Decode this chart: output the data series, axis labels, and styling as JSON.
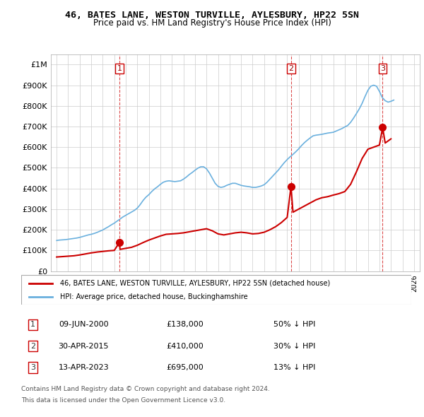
{
  "title": "46, BATES LANE, WESTON TURVILLE, AYLESBURY, HP22 5SN",
  "subtitle": "Price paid vs. HM Land Registry's House Price Index (HPI)",
  "legend_line1": "46, BATES LANE, WESTON TURVILLE, AYLESBURY, HP22 5SN (detached house)",
  "legend_line2": "HPI: Average price, detached house, Buckinghamshire",
  "footnote1": "Contains HM Land Registry data © Crown copyright and database right 2024.",
  "footnote2": "This data is licensed under the Open Government Licence v3.0.",
  "transactions": [
    {
      "num": 1,
      "date": "09-JUN-2000",
      "price": 138000,
      "hpi_diff": "50% ↓ HPI",
      "year": 2000.44
    },
    {
      "num": 2,
      "date": "30-APR-2015",
      "price": 410000,
      "hpi_diff": "30% ↓ HPI",
      "year": 2015.33
    },
    {
      "num": 3,
      "date": "13-APR-2023",
      "price": 695000,
      "hpi_diff": "13% ↓ HPI",
      "year": 2023.28
    }
  ],
  "hpi_color": "#6ab0de",
  "price_color": "#cc0000",
  "marker_color": "#cc0000",
  "vline_color": "#cc0000",
  "grid_color": "#cccccc",
  "bg_color": "#ffffff",
  "ylim": [
    0,
    1050000
  ],
  "xlim_start": 1994.5,
  "xlim_end": 2026.5,
  "yticks": [
    0,
    100000,
    200000,
    300000,
    400000,
    500000,
    600000,
    700000,
    800000,
    900000,
    1000000
  ],
  "ytick_labels": [
    "£0",
    "£100K",
    "£200K",
    "£300K",
    "£400K",
    "£500K",
    "£600K",
    "£700K",
    "£800K",
    "£900K",
    "£1M"
  ],
  "hpi_data_years": [
    1995,
    1995.25,
    1995.5,
    1995.75,
    1996,
    1996.25,
    1996.5,
    1996.75,
    1997,
    1997.25,
    1997.5,
    1997.75,
    1998,
    1998.25,
    1998.5,
    1998.75,
    1999,
    1999.25,
    1999.5,
    1999.75,
    2000,
    2000.25,
    2000.5,
    2000.75,
    2001,
    2001.25,
    2001.5,
    2001.75,
    2002,
    2002.25,
    2002.5,
    2002.75,
    2003,
    2003.25,
    2003.5,
    2003.75,
    2004,
    2004.25,
    2004.5,
    2004.75,
    2005,
    2005.25,
    2005.5,
    2005.75,
    2006,
    2006.25,
    2006.5,
    2006.75,
    2007,
    2007.25,
    2007.5,
    2007.75,
    2008,
    2008.25,
    2008.5,
    2008.75,
    2009,
    2009.25,
    2009.5,
    2009.75,
    2010,
    2010.25,
    2010.5,
    2010.75,
    2011,
    2011.25,
    2011.5,
    2011.75,
    2012,
    2012.25,
    2012.5,
    2012.75,
    2013,
    2013.25,
    2013.5,
    2013.75,
    2014,
    2014.25,
    2014.5,
    2014.75,
    2015,
    2015.25,
    2015.5,
    2015.75,
    2016,
    2016.25,
    2016.5,
    2016.75,
    2017,
    2017.25,
    2017.5,
    2017.75,
    2018,
    2018.25,
    2018.5,
    2018.75,
    2019,
    2019.25,
    2019.5,
    2019.75,
    2020,
    2020.25,
    2020.5,
    2020.75,
    2021,
    2021.25,
    2021.5,
    2021.75,
    2022,
    2022.25,
    2022.5,
    2022.75,
    2023,
    2023.25,
    2023.5,
    2023.75,
    2024,
    2024.25
  ],
  "hpi_data_values": [
    148000,
    150000,
    151000,
    152000,
    154000,
    156000,
    158000,
    160000,
    163000,
    167000,
    171000,
    175000,
    178000,
    182000,
    187000,
    193000,
    199000,
    207000,
    215000,
    224000,
    232000,
    242000,
    252000,
    262000,
    270000,
    278000,
    286000,
    294000,
    305000,
    322000,
    342000,
    358000,
    370000,
    385000,
    398000,
    408000,
    420000,
    430000,
    435000,
    437000,
    435000,
    433000,
    435000,
    437000,
    445000,
    455000,
    467000,
    477000,
    488000,
    498000,
    505000,
    505000,
    495000,
    475000,
    450000,
    425000,
    410000,
    405000,
    408000,
    415000,
    420000,
    425000,
    425000,
    420000,
    415000,
    412000,
    410000,
    408000,
    405000,
    405000,
    408000,
    412000,
    418000,
    430000,
    445000,
    460000,
    475000,
    490000,
    508000,
    525000,
    540000,
    553000,
    565000,
    578000,
    592000,
    608000,
    622000,
    634000,
    645000,
    655000,
    658000,
    660000,
    662000,
    665000,
    668000,
    670000,
    672000,
    678000,
    684000,
    690000,
    698000,
    705000,
    720000,
    740000,
    762000,
    785000,
    812000,
    845000,
    875000,
    895000,
    900000,
    895000,
    870000,
    840000,
    825000,
    818000,
    822000,
    828000
  ],
  "price_data_years": [
    1995,
    1995.5,
    1996,
    1996.5,
    1997,
    1997.5,
    1998,
    1998.5,
    1999,
    1999.5,
    2000,
    2000.44,
    2000.5,
    2001,
    2001.5,
    2002,
    2002.5,
    2003,
    2003.5,
    2004,
    2004.5,
    2005,
    2005.5,
    2006,
    2006.5,
    2007,
    2007.5,
    2008,
    2008.5,
    2009,
    2009.5,
    2010,
    2010.5,
    2011,
    2011.5,
    2012,
    2012.5,
    2013,
    2013.5,
    2014,
    2014.5,
    2015,
    2015.33,
    2015.5,
    2016,
    2016.5,
    2017,
    2017.5,
    2018,
    2018.5,
    2019,
    2019.5,
    2020,
    2020.5,
    2021,
    2021.5,
    2022,
    2022.5,
    2023,
    2023.28,
    2023.5,
    2024
  ],
  "price_data_values": [
    68000,
    70000,
    72000,
    74000,
    78000,
    83000,
    88000,
    92000,
    95000,
    98000,
    100000,
    138000,
    105000,
    110000,
    115000,
    125000,
    138000,
    150000,
    160000,
    170000,
    178000,
    180000,
    182000,
    185000,
    190000,
    195000,
    200000,
    205000,
    195000,
    180000,
    175000,
    180000,
    185000,
    188000,
    185000,
    180000,
    182000,
    188000,
    200000,
    215000,
    235000,
    260000,
    410000,
    285000,
    300000,
    315000,
    330000,
    345000,
    355000,
    360000,
    368000,
    375000,
    385000,
    420000,
    480000,
    545000,
    590000,
    600000,
    610000,
    695000,
    620000,
    640000
  ]
}
